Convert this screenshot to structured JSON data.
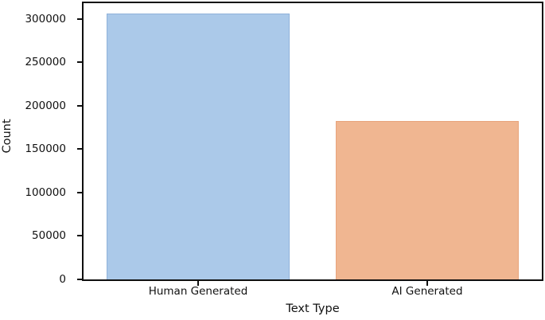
{
  "chart_data": {
    "type": "bar",
    "title": "",
    "xlabel": "Text Type",
    "ylabel": "Count",
    "categories": [
      "Human Generated",
      "AI Generated"
    ],
    "values": [
      306000,
      182000
    ],
    "bar_fill_colors": [
      "#abc9e9",
      "#f0b691"
    ],
    "bar_edge_colors": [
      "#8fb2da",
      "#e8a47c"
    ],
    "ylim": [
      0,
      318000
    ],
    "yticks": [
      0,
      50000,
      100000,
      150000,
      200000,
      250000,
      300000
    ],
    "ytick_labels": [
      "0",
      "50000",
      "100000",
      "150000",
      "200000",
      "250000",
      "300000"
    ],
    "bar_width_fraction": 0.8,
    "grid": false,
    "legend": null,
    "background_color": "#ffffff",
    "spine_color": "#0f0f0f"
  }
}
